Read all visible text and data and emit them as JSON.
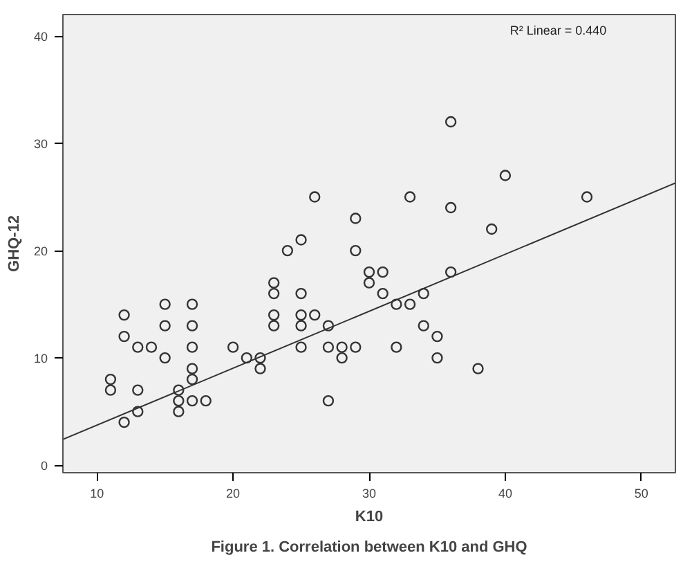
{
  "chart_data": {
    "type": "scatter",
    "title": "Figure 1. Correlation between K10 and GHQ",
    "xlabel": "K10",
    "ylabel": "GHQ-12",
    "annotations": [
      "R² Linear = 0.440"
    ],
    "xlim": [
      7.5,
      52.5
    ],
    "ylim": [
      -0.7,
      42
    ],
    "xticks": [
      10,
      20,
      30,
      40,
      50
    ],
    "yticks": [
      0,
      10,
      20,
      30,
      40
    ],
    "grid": false,
    "series": [
      {
        "marker": "circle",
        "color": "#333333",
        "x": [
          11,
          11,
          12,
          12,
          12,
          13,
          13,
          13,
          14,
          15,
          15,
          15,
          16,
          16,
          16,
          17,
          17,
          17,
          17,
          17,
          17,
          18,
          20,
          21,
          22,
          22,
          23,
          23,
          23,
          23,
          24,
          25,
          25,
          25,
          25,
          25,
          26,
          26,
          27,
          27,
          27,
          28,
          28,
          29,
          29,
          29,
          30,
          30,
          31,
          31,
          32,
          32,
          33,
          33,
          34,
          34,
          35,
          35,
          36,
          36,
          36,
          38,
          39,
          40,
          46
        ],
        "values": [
          8,
          7,
          14,
          12,
          4,
          11,
          7,
          5,
          11,
          15,
          13,
          10,
          7,
          6,
          5,
          15,
          13,
          11,
          9,
          8,
          6,
          6,
          11,
          10,
          10,
          9,
          13,
          14,
          16,
          17,
          20,
          21,
          16,
          14,
          13,
          11,
          14,
          25,
          13,
          11,
          6,
          11,
          10,
          11,
          23,
          20,
          18,
          17,
          18,
          16,
          11,
          15,
          25,
          15,
          16,
          13,
          12,
          10,
          32,
          24,
          18,
          9,
          22,
          27,
          25
        ]
      },
      {
        "type": "line",
        "marker": "none",
        "color": "#333333",
        "x": [
          7.5,
          52.5
        ],
        "values": [
          2.4,
          26.3
        ]
      }
    ]
  }
}
